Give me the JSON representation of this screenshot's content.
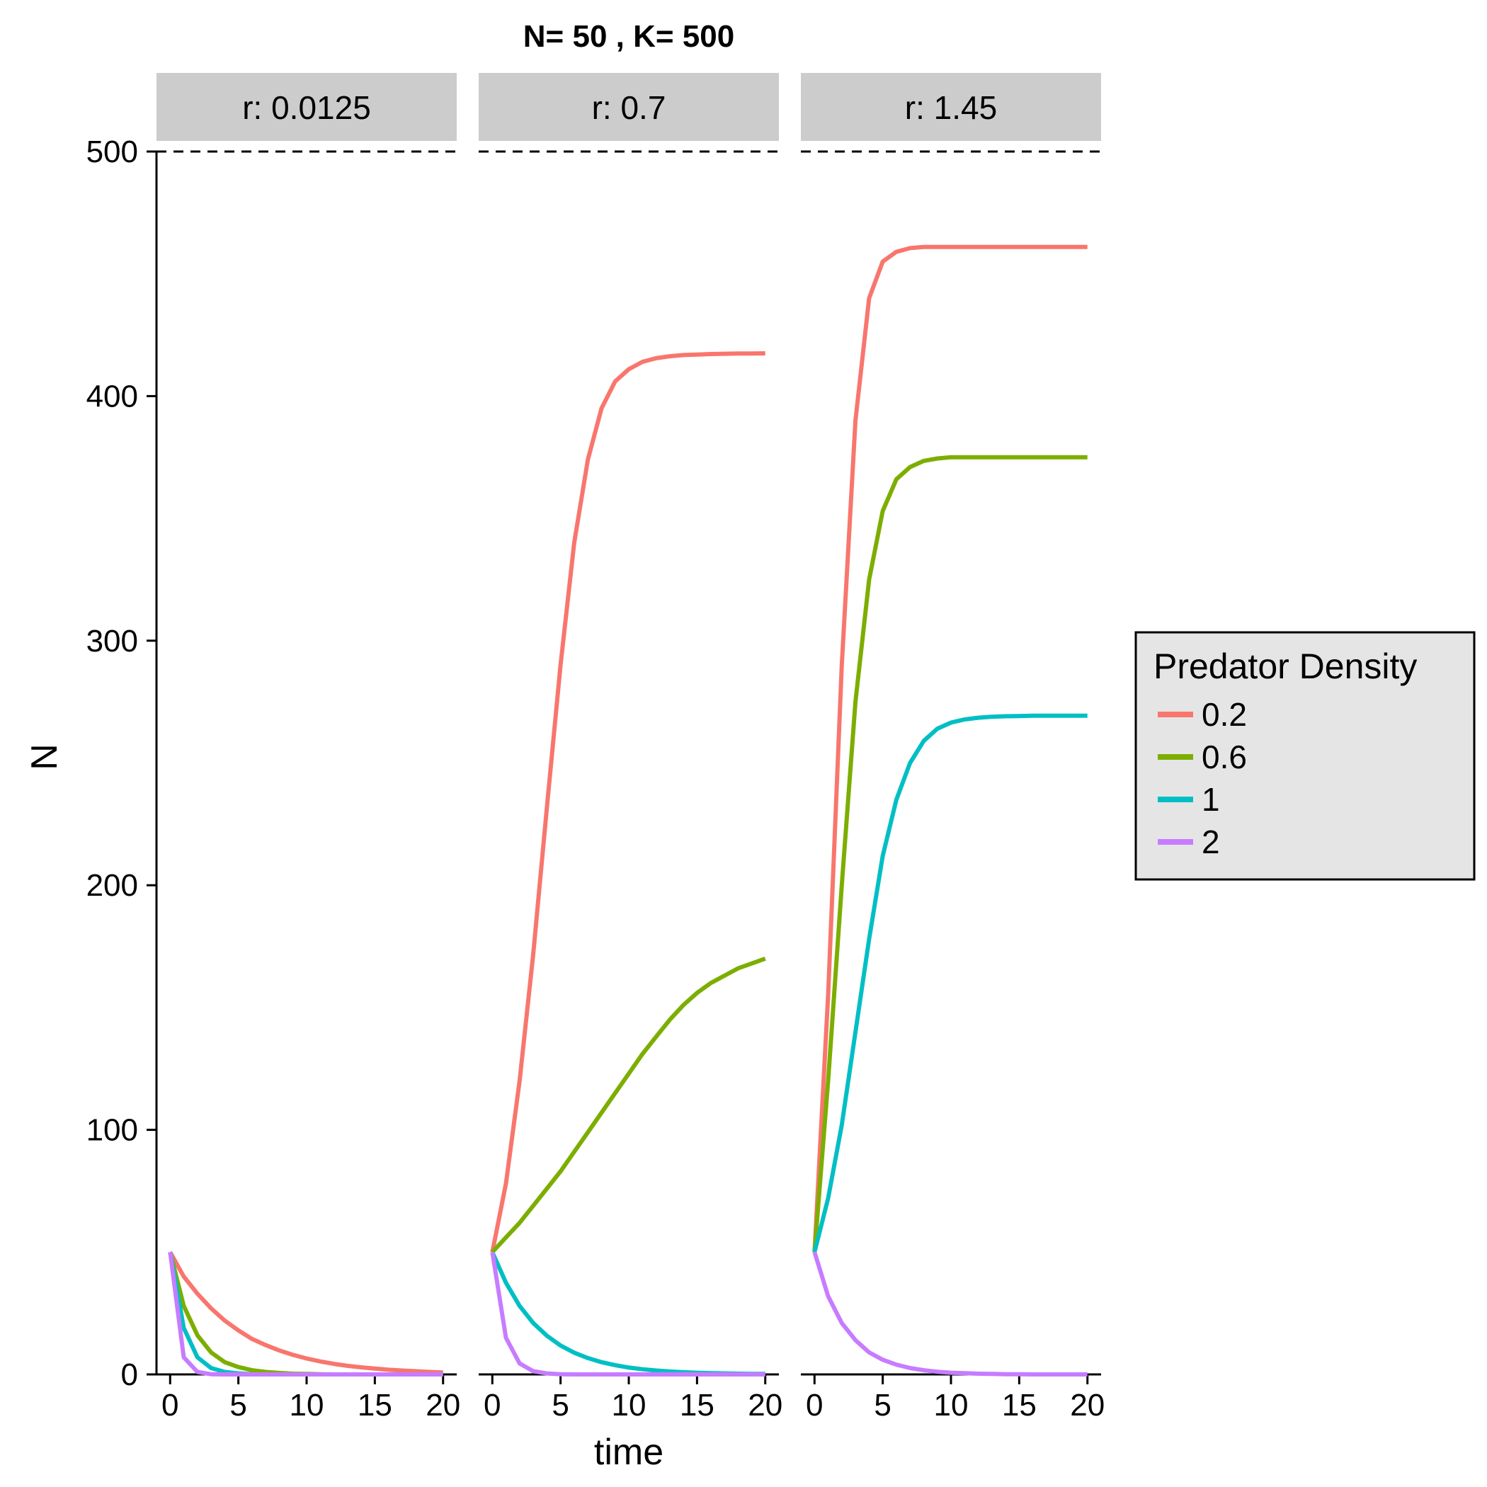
{
  "chart_data": {
    "type": "line",
    "title": "N= 50 , K= 500",
    "xlabel": "time",
    "ylabel": "N",
    "xlim": [
      -1,
      21
    ],
    "ylim": [
      0,
      500
    ],
    "x_ticks": [
      0,
      5,
      10,
      15,
      20
    ],
    "y_ticks": [
      0,
      100,
      200,
      300,
      400,
      500
    ],
    "reference_line": {
      "y": 500,
      "style": "dashed"
    },
    "legend": {
      "title": "Predator Density",
      "placement": "right",
      "entries": [
        {
          "label": "0.2",
          "color": "#F8766D"
        },
        {
          "label": "0.6",
          "color": "#7CAE00"
        },
        {
          "label": "1",
          "color": "#00BFC4"
        },
        {
          "label": "2",
          "color": "#C77CFF"
        }
      ]
    },
    "x": [
      0,
      1,
      2,
      3,
      4,
      5,
      6,
      7,
      8,
      9,
      10,
      11,
      12,
      13,
      14,
      15,
      16,
      17,
      18,
      19,
      20
    ],
    "panels": [
      {
        "label": "r: 0.0125",
        "series": [
          {
            "name": "0.2",
            "values": [
              50,
              40,
              33,
              27,
              22,
              18,
              14.5,
              12,
              9.8,
              8,
              6.5,
              5.3,
              4.3,
              3.5,
              2.9,
              2.4,
              1.9,
              1.6,
              1.3,
              1.0,
              0.8
            ]
          },
          {
            "name": "0.6",
            "values": [
              50,
              28,
              16,
              9,
              5,
              3,
              1.7,
              1.0,
              0.6,
              0.3,
              0.2,
              0.1,
              0,
              0,
              0,
              0,
              0,
              0,
              0,
              0,
              0
            ]
          },
          {
            "name": "1",
            "values": [
              50,
              19,
              7,
              2.6,
              1.0,
              0.4,
              0.1,
              0,
              0,
              0,
              0,
              0,
              0,
              0,
              0,
              0,
              0,
              0,
              0,
              0,
              0
            ]
          },
          {
            "name": "2",
            "values": [
              50,
              7,
              1,
              0.1,
              0,
              0,
              0,
              0,
              0,
              0,
              0,
              0,
              0,
              0,
              0,
              0,
              0,
              0,
              0,
              0,
              0
            ]
          }
        ]
      },
      {
        "label": "r: 0.7",
        "series": [
          {
            "name": "0.2",
            "values": [
              50,
              78,
              120,
              172,
              232,
              290,
              340,
              374,
              395,
              406,
              411,
              414,
              415.5,
              416.3,
              416.8,
              417,
              417.2,
              417.3,
              417.4,
              417.4,
              417.5
            ]
          },
          {
            "name": "0.6",
            "values": [
              50,
              56,
              62,
              69,
              76,
              83,
              91,
              99,
              107,
              115,
              123,
              131,
              138,
              145,
              151,
              156,
              160,
              163,
              166,
              168,
              170
            ]
          },
          {
            "name": "1",
            "values": [
              50,
              37.5,
              28,
              21,
              15.8,
              11.8,
              8.9,
              6.7,
              5.0,
              3.8,
              2.8,
              2.1,
              1.6,
              1.2,
              0.9,
              0.7,
              0.5,
              0.4,
              0.3,
              0.2,
              0.2
            ]
          },
          {
            "name": "2",
            "values": [
              50,
              15,
              4.5,
              1.3,
              0.4,
              0.1,
              0,
              0,
              0,
              0,
              0,
              0,
              0,
              0,
              0,
              0,
              0,
              0,
              0,
              0,
              0
            ]
          }
        ]
      },
      {
        "label": "r: 1.45",
        "series": [
          {
            "name": "0.2",
            "values": [
              50,
              155,
              290,
              390,
              440,
              455,
              459,
              460.5,
              461,
              461,
              461,
              461,
              461,
              461,
              461,
              461,
              461,
              461,
              461,
              461,
              461
            ]
          },
          {
            "name": "0.6",
            "values": [
              50,
              120,
              200,
              275,
              325,
              353,
              366,
              371,
              373.5,
              374.5,
              375,
              375,
              375,
              375,
              375,
              375,
              375,
              375,
              375,
              375,
              375
            ]
          },
          {
            "name": "1",
            "values": [
              50,
              72,
              102,
              140,
              178,
              212,
              235,
              250,
              259,
              264,
              266.5,
              267.8,
              268.5,
              268.9,
              269.1,
              269.2,
              269.3,
              269.3,
              269.3,
              269.3,
              269.3
            ]
          },
          {
            "name": "2",
            "values": [
              50,
              32,
              21,
              14,
              9,
              6,
              4,
              2.6,
              1.7,
              1.1,
              0.7,
              0.5,
              0.3,
              0.2,
              0.1,
              0.1,
              0,
              0,
              0,
              0,
              0
            ]
          }
        ]
      }
    ]
  }
}
